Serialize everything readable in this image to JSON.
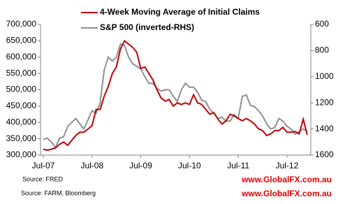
{
  "chart_data": {
    "type": "line",
    "x": [
      "Jul-07",
      "Aug-07",
      "Sep-07",
      "Oct-07",
      "Nov-07",
      "Dec-07",
      "Jan-08",
      "Feb-08",
      "Mar-08",
      "Apr-08",
      "May-08",
      "Jun-08",
      "Jul-08",
      "Aug-08",
      "Sep-08",
      "Oct-08",
      "Nov-08",
      "Dec-08",
      "Jan-09",
      "Feb-09",
      "Mar-09",
      "Apr-09",
      "May-09",
      "Jun-09",
      "Jul-09",
      "Aug-09",
      "Sep-09",
      "Oct-09",
      "Nov-09",
      "Dec-09",
      "Jan-10",
      "Feb-10",
      "Mar-10",
      "Apr-10",
      "May-10",
      "Jun-10",
      "Jul-10",
      "Aug-10",
      "Sep-10",
      "Oct-10",
      "Nov-10",
      "Dec-10",
      "Jan-11",
      "Feb-11",
      "Mar-11",
      "Apr-11",
      "May-11",
      "Jun-11",
      "Jul-11",
      "Aug-11",
      "Sep-11",
      "Oct-11",
      "Nov-11",
      "Dec-11",
      "Jan-12",
      "Feb-12",
      "Mar-12",
      "Apr-12",
      "May-12",
      "Jun-12",
      "Jul-12",
      "Aug-12",
      "Sep-12",
      "Oct-12",
      "Nov-12",
      "Dec-12"
    ],
    "series": [
      {
        "name": "4-Week Moving Average of Initial Claims",
        "color": "#c00000",
        "axis": "y",
        "values": [
          318000,
          315000,
          318000,
          322000,
          333000,
          340000,
          330000,
          345000,
          360000,
          370000,
          370000,
          380000,
          390000,
          440000,
          440000,
          480000,
          510000,
          550000,
          570000,
          625000,
          650000,
          640000,
          630000,
          615000,
          565000,
          570000,
          550000,
          530000,
          500000,
          475000,
          465000,
          470000,
          450000,
          460000,
          455000,
          460000,
          455000,
          485000,
          460000,
          455000,
          440000,
          425000,
          430000,
          410000,
          395000,
          405000,
          425000,
          420000,
          412000,
          405000,
          412000,
          405000,
          395000,
          380000,
          375000,
          360000,
          365000,
          375000,
          375000,
          385000,
          370000,
          370000,
          372000,
          365000,
          410000,
          362000
        ]
      },
      {
        "name": "S&P 500 (inverted-RHS)",
        "color": "#909090",
        "axis": "y2",
        "values": [
          1480,
          1470,
          1500,
          1540,
          1470,
          1460,
          1380,
          1350,
          1320,
          1360,
          1400,
          1330,
          1260,
          1280,
          1200,
          950,
          850,
          880,
          850,
          750,
          760,
          850,
          900,
          920,
          940,
          1000,
          1050,
          1050,
          1090,
          1110,
          1100,
          1100,
          1150,
          1190,
          1100,
          1050,
          1080,
          1080,
          1120,
          1180,
          1190,
          1250,
          1280,
          1320,
          1310,
          1340,
          1340,
          1290,
          1320,
          1150,
          1140,
          1220,
          1230,
          1260,
          1300,
          1360,
          1400,
          1390,
          1320,
          1340,
          1380,
          1400,
          1440,
          1420,
          1400,
          1420
        ]
      }
    ],
    "xticks": [
      "Jul-07",
      "Jul-08",
      "Jul-09",
      "Jul-10",
      "Jul-11",
      "Jul-12"
    ],
    "ylim": [
      300000,
      700000
    ],
    "yticks": [
      {
        "value": 300000,
        "label": "300,000"
      },
      {
        "value": 350000,
        "label": "350,000"
      },
      {
        "value": 400000,
        "label": "400,000"
      },
      {
        "value": 450000,
        "label": "450,000"
      },
      {
        "value": 500000,
        "label": "500,000"
      },
      {
        "value": 550000,
        "label": "550,000"
      },
      {
        "value": 600000,
        "label": "600,000"
      },
      {
        "value": 650000,
        "label": "650,000"
      },
      {
        "value": 700000,
        "label": "700,000"
      }
    ],
    "y2lim": [
      600,
      1600
    ],
    "y2_inverted": true,
    "y2ticks": [
      600,
      800,
      1000,
      1200,
      1400,
      1600
    ],
    "grid": false,
    "legend": "top",
    "annotations": [
      "Source: FRED",
      "Source: FARM, Bloomberg",
      "www.GlobalFX.com.au",
      "www.GlobalFX.com.au"
    ]
  }
}
